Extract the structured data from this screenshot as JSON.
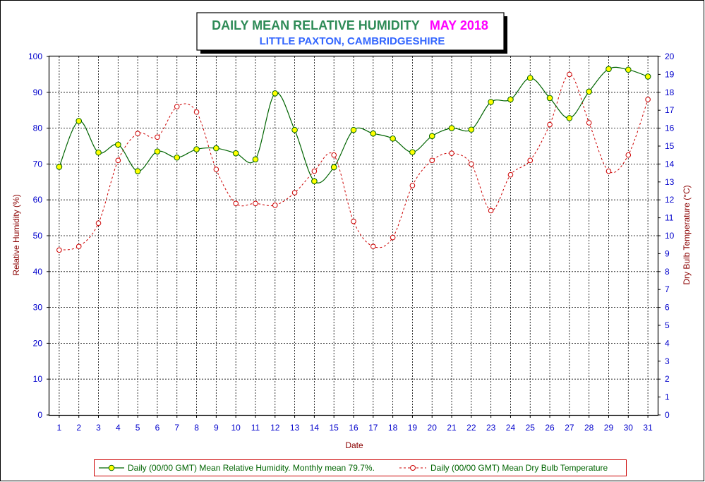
{
  "chart_data": {
    "type": "line",
    "title": "DAILY MEAN RELATIVE HUMIDITY",
    "title_date": "MAY 2018",
    "subtitle": "LITTLE PAXTON, CAMBRIDGESHIRE",
    "xlabel": "Date",
    "ylabel": "Relative Humidity (%)",
    "y2label": "Dry Bulb Temperature (°C)",
    "x": [
      1,
      2,
      3,
      4,
      5,
      6,
      7,
      8,
      9,
      10,
      11,
      12,
      13,
      14,
      15,
      16,
      17,
      18,
      19,
      20,
      21,
      22,
      23,
      24,
      25,
      26,
      27,
      28,
      29,
      30,
      31
    ],
    "xlim": [
      0.5,
      31.5
    ],
    "ylim": [
      0,
      100
    ],
    "y2lim": [
      0,
      20
    ],
    "yticks": [
      0,
      10,
      20,
      30,
      40,
      50,
      60,
      70,
      80,
      90,
      100
    ],
    "y2ticks": [
      0,
      1,
      2,
      3,
      4,
      5,
      6,
      7,
      8,
      9,
      10,
      11,
      12,
      13,
      14,
      15,
      16,
      17,
      18,
      19,
      20
    ],
    "grid": true,
    "legend_position": "bottom",
    "series": [
      {
        "name": "Daily (00/00 GMT) Mean Relative Humidity. Monthly mean 79.7%.",
        "axis": "left",
        "color": "#006400",
        "marker_fill": "#ffff00",
        "values": [
          69.2,
          82.0,
          73.2,
          75.4,
          68.0,
          73.5,
          71.8,
          74.1,
          74.4,
          73.0,
          71.3,
          89.7,
          79.5,
          65.2,
          69.1,
          79.5,
          78.5,
          77.1,
          73.3,
          77.8,
          80.0,
          79.6,
          87.3,
          88.0,
          94.0,
          88.4,
          82.8,
          90.2,
          96.5,
          96.3,
          94.4
        ]
      },
      {
        "name": "Daily (00/00 GMT) Mean Dry Bulb Temperature",
        "axis": "right",
        "color": "#cc0000",
        "marker_fill": "#ffffff",
        "values": [
          9.2,
          9.4,
          10.7,
          14.2,
          15.7,
          15.5,
          17.2,
          16.9,
          13.7,
          11.8,
          11.8,
          11.7,
          12.4,
          13.6,
          14.5,
          10.8,
          9.4,
          9.9,
          12.8,
          14.2,
          14.6,
          14.0,
          11.4,
          13.4,
          14.2,
          16.2,
          19.0,
          16.3,
          13.6,
          14.5,
          17.6
        ]
      }
    ]
  }
}
